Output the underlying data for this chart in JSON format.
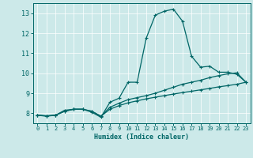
{
  "xlabel": "Humidex (Indice chaleur)",
  "bg_color": "#cce9e9",
  "line_color": "#006666",
  "grid_color": "#ffffff",
  "xlim": [
    -0.5,
    23.5
  ],
  "ylim": [
    7.5,
    13.5
  ],
  "yticks": [
    8,
    9,
    10,
    11,
    12,
    13
  ],
  "xticks": [
    0,
    1,
    2,
    3,
    4,
    5,
    6,
    7,
    8,
    9,
    10,
    11,
    12,
    13,
    14,
    15,
    16,
    17,
    18,
    19,
    20,
    21,
    22,
    23
  ],
  "line1_x": [
    0,
    1,
    2,
    3,
    4,
    5,
    6,
    7,
    8,
    9,
    10,
    11,
    12,
    13,
    14,
    15,
    16,
    17,
    18,
    19,
    20,
    21,
    22,
    23
  ],
  "line1_y": [
    7.9,
    7.85,
    7.9,
    8.15,
    8.2,
    8.2,
    8.05,
    7.8,
    8.55,
    8.75,
    9.55,
    9.55,
    11.75,
    12.9,
    13.1,
    13.2,
    12.6,
    10.85,
    10.3,
    10.35,
    10.05,
    10.05,
    9.95,
    9.55
  ],
  "line2_x": [
    0,
    1,
    2,
    3,
    4,
    5,
    6,
    7,
    8,
    9,
    10,
    11,
    12,
    13,
    14,
    15,
    16,
    17,
    18,
    19,
    20,
    21,
    22,
    23
  ],
  "line2_y": [
    7.9,
    7.87,
    7.9,
    8.1,
    8.2,
    8.2,
    8.1,
    7.85,
    8.3,
    8.5,
    8.68,
    8.78,
    8.88,
    9.0,
    9.15,
    9.3,
    9.45,
    9.55,
    9.65,
    9.78,
    9.88,
    9.97,
    10.02,
    9.55
  ],
  "line3_x": [
    0,
    1,
    2,
    3,
    4,
    5,
    6,
    7,
    8,
    9,
    10,
    11,
    12,
    13,
    14,
    15,
    16,
    17,
    18,
    19,
    20,
    21,
    22,
    23
  ],
  "line3_y": [
    7.9,
    7.87,
    7.9,
    8.1,
    8.2,
    8.2,
    8.1,
    7.85,
    8.2,
    8.38,
    8.52,
    8.62,
    8.72,
    8.8,
    8.88,
    8.96,
    9.03,
    9.1,
    9.17,
    9.24,
    9.32,
    9.38,
    9.45,
    9.55
  ]
}
